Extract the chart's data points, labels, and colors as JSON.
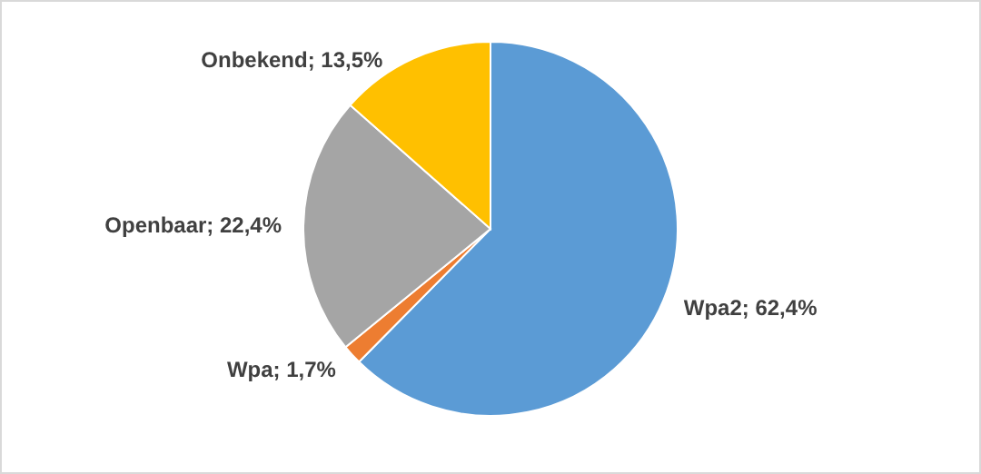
{
  "chart_data": {
    "type": "pie",
    "categories": [
      "Wpa2",
      "Wpa",
      "Openbaar",
      "Onbekend"
    ],
    "values": [
      62.4,
      1.7,
      22.4,
      13.5
    ],
    "value_labels": [
      "62,4%",
      "1,7%",
      "22,4%",
      "13,5%"
    ],
    "colors": [
      "#5b9bd5",
      "#ed7d31",
      "#a5a5a5",
      "#ffc000"
    ]
  }
}
